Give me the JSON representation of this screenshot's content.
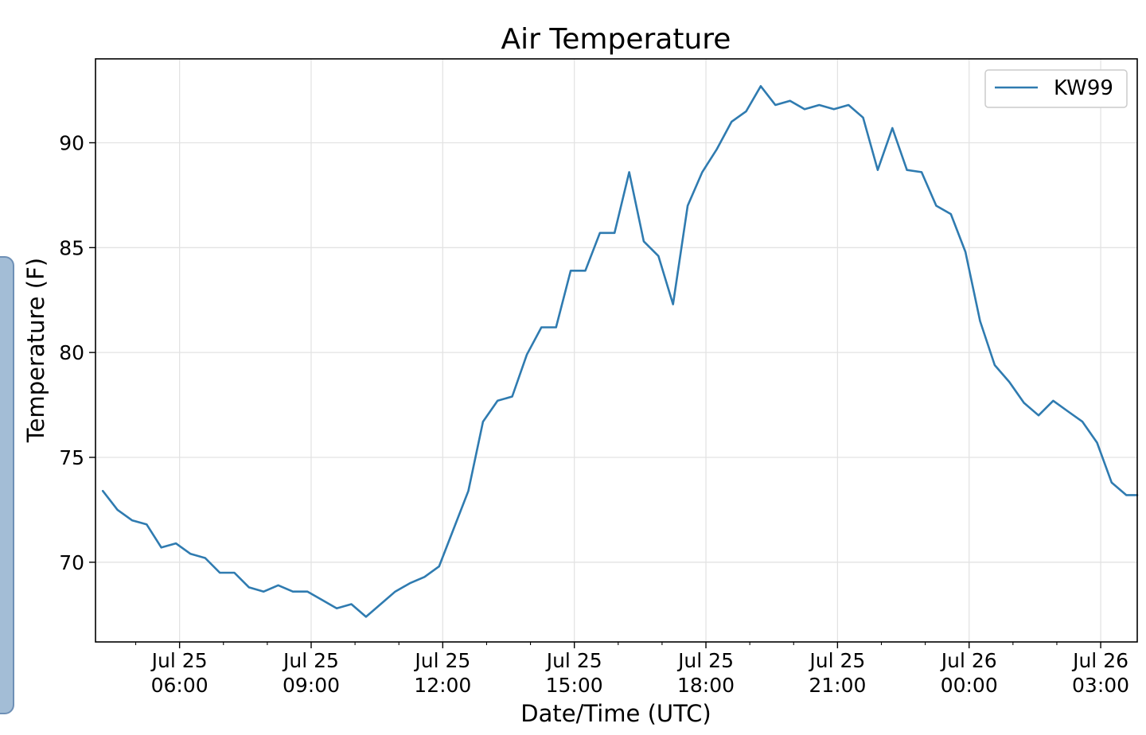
{
  "chart_data": {
    "type": "line",
    "title": "Air Temperature",
    "xlabel": "Date/Time (UTC)",
    "ylabel": "Temperature (F)",
    "x_range": [
      "Jul 25 04:05",
      "Jul 26 03:50"
    ],
    "ylim": [
      66.2,
      94.0
    ],
    "grid": true,
    "legend_position": "top-right",
    "x_ticks": [
      {
        "time": "Jul 25 06:00",
        "line1": "Jul 25",
        "line2": "06:00"
      },
      {
        "time": "Jul 25 09:00",
        "line1": "Jul 25",
        "line2": "09:00"
      },
      {
        "time": "Jul 25 12:00",
        "line1": "Jul 25",
        "line2": "12:00"
      },
      {
        "time": "Jul 25 15:00",
        "line1": "Jul 25",
        "line2": "15:00"
      },
      {
        "time": "Jul 25 18:00",
        "line1": "Jul 25",
        "line2": "18:00"
      },
      {
        "time": "Jul 25 21:00",
        "line1": "Jul 25",
        "line2": "21:00"
      },
      {
        "time": "Jul 26 00:00",
        "line1": "Jul 26",
        "line2": "00:00"
      },
      {
        "time": "Jul 26 03:00",
        "line1": "Jul 26",
        "line2": "03:00"
      }
    ],
    "y_ticks": [
      70,
      75,
      80,
      85,
      90
    ],
    "series": [
      {
        "name": "KW99",
        "color": "#2f7bb0",
        "x": [
          "Jul 25 04:15",
          "Jul 25 04:35",
          "Jul 25 04:55",
          "Jul 25 05:15",
          "Jul 25 05:35",
          "Jul 25 05:55",
          "Jul 25 06:15",
          "Jul 25 06:35",
          "Jul 25 06:55",
          "Jul 25 07:15",
          "Jul 25 07:35",
          "Jul 25 07:55",
          "Jul 25 08:15",
          "Jul 25 08:35",
          "Jul 25 08:55",
          "Jul 25 09:15",
          "Jul 25 09:35",
          "Jul 25 09:55",
          "Jul 25 10:15",
          "Jul 25 10:35",
          "Jul 25 10:55",
          "Jul 25 11:15",
          "Jul 25 11:35",
          "Jul 25 11:55",
          "Jul 25 12:15",
          "Jul 25 12:35",
          "Jul 25 12:55",
          "Jul 25 13:15",
          "Jul 25 13:35",
          "Jul 25 13:55",
          "Jul 25 14:15",
          "Jul 25 14:35",
          "Jul 25 14:55",
          "Jul 25 15:15",
          "Jul 25 15:35",
          "Jul 25 15:55",
          "Jul 25 16:15",
          "Jul 25 16:35",
          "Jul 25 16:55",
          "Jul 25 17:15",
          "Jul 25 17:35",
          "Jul 25 17:55",
          "Jul 25 18:15",
          "Jul 25 18:35",
          "Jul 25 18:55",
          "Jul 25 19:15",
          "Jul 25 19:35",
          "Jul 25 19:55",
          "Jul 25 20:15",
          "Jul 25 20:35",
          "Jul 25 20:55",
          "Jul 25 21:15",
          "Jul 25 21:35",
          "Jul 25 21:55",
          "Jul 25 22:15",
          "Jul 25 22:35",
          "Jul 25 22:55",
          "Jul 25 23:15",
          "Jul 25 23:35",
          "Jul 25 23:55",
          "Jul 26 00:15",
          "Jul 26 00:35",
          "Jul 26 00:55",
          "Jul 26 01:15",
          "Jul 26 01:35",
          "Jul 26 01:55",
          "Jul 26 02:15",
          "Jul 26 02:35",
          "Jul 26 02:55",
          "Jul 26 03:15",
          "Jul 26 03:35",
          "Jul 26 03:50"
        ],
        "values": [
          73.4,
          72.5,
          72.0,
          71.8,
          70.7,
          70.9,
          70.4,
          70.2,
          69.5,
          69.5,
          68.8,
          68.6,
          68.9,
          68.6,
          68.6,
          68.2,
          67.8,
          68.0,
          67.4,
          68.0,
          68.6,
          69.0,
          69.3,
          69.8,
          71.6,
          73.4,
          76.7,
          77.7,
          77.9,
          79.9,
          81.2,
          81.2,
          83.9,
          83.9,
          85.7,
          85.7,
          88.6,
          85.3,
          84.6,
          82.3,
          87.0,
          88.6,
          89.7,
          91.0,
          91.5,
          92.7,
          91.8,
          92.0,
          91.6,
          91.8,
          91.6,
          91.8,
          91.2,
          88.7,
          90.7,
          88.7,
          88.6,
          87.0,
          86.6,
          84.8,
          81.5,
          79.4,
          78.6,
          77.6,
          77.0,
          77.7,
          77.2,
          76.7,
          75.7,
          73.8,
          73.2,
          73.2
        ]
      }
    ]
  }
}
